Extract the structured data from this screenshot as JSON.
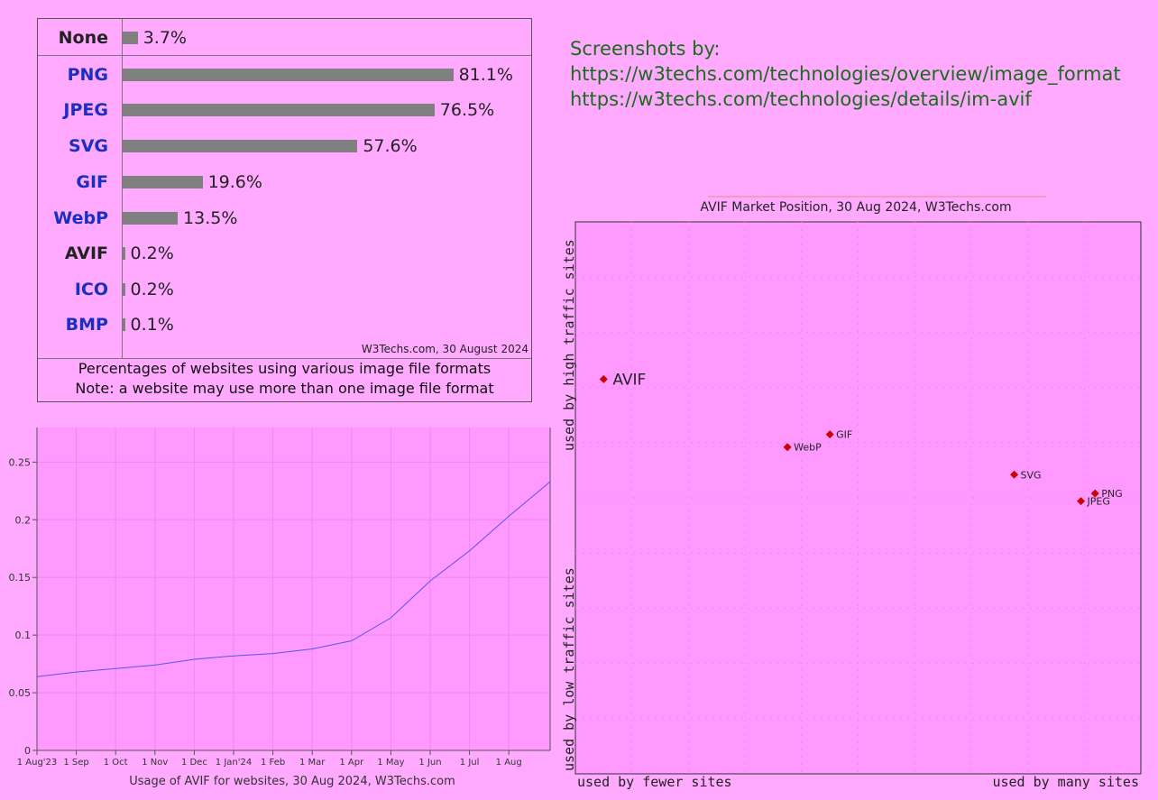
{
  "bar_table": {
    "credit": "W3Techs.com, 30 August 2024",
    "caption_line1": "Percentages of websites using various image file formats",
    "caption_line2": "Note: a website may use more than one image file format"
  },
  "screenshots": {
    "heading": "Screenshots by:",
    "link1": "https://w3techs.com/technologies/overview/image_format",
    "link2": "https://w3techs.com/technologies/details/im-avif"
  },
  "colors": {
    "background": "#ffaaff",
    "bar": "#808080",
    "label_blue": "#1a2fc2",
    "line": "#5555ee",
    "point": "#cc0000",
    "note_green": "#1c6b1c"
  },
  "chart_data": [
    {
      "type": "bar",
      "orientation": "horizontal",
      "categories": [
        "None",
        "PNG",
        "JPEG",
        "SVG",
        "GIF",
        "WebP",
        "AVIF",
        "ICO",
        "BMP"
      ],
      "values": [
        3.7,
        81.1,
        76.5,
        57.6,
        19.6,
        13.5,
        0.2,
        0.2,
        0.1
      ],
      "value_labels": [
        "3.7%",
        "81.1%",
        "76.5%",
        "57.6%",
        "19.6%",
        "13.5%",
        "0.2%",
        "0.2%",
        "0.1%"
      ],
      "xlim": [
        0,
        100
      ]
    },
    {
      "type": "line",
      "title": "Usage of AVIF for websites, 30 Aug 2024, W3Techs.com",
      "x": [
        "1 Aug'23",
        "1 Sep",
        "1 Oct",
        "1 Nov",
        "1 Dec",
        "1 Jan'24",
        "1 Feb",
        "1 Mar",
        "1 Apr",
        "1 May",
        "1 Jun",
        "1 Jul",
        "1 Aug",
        "30 Aug"
      ],
      "x_tick_labels": [
        "1 Aug'23",
        "1 Sep",
        "1 Oct",
        "1 Nov",
        "1 Dec",
        "1 Jan'24",
        "1 Feb",
        "1 Mar",
        "1 Apr",
        "1 May",
        "1 Jun",
        "1 Jul",
        "1 Aug"
      ],
      "y": [
        0.064,
        0.068,
        0.071,
        0.074,
        0.079,
        0.082,
        0.084,
        0.088,
        0.095,
        0.115,
        0.147,
        0.173,
        0.203,
        0.233
      ],
      "y_ticks": [
        0,
        0.05,
        0.1,
        0.15,
        0.2,
        0.25
      ],
      "y_tick_labels": [
        "0",
        "0.05",
        "0.1",
        "0.15",
        "0.2",
        "0.25"
      ],
      "ylim": [
        0,
        0.28
      ],
      "grid": true
    },
    {
      "type": "scatter",
      "title": "AVIF Market Position, 30 Aug 2024, W3Techs.com",
      "xlabel_left": "used by fewer sites",
      "xlabel_right": "used by many sites",
      "ylabel_top": "used by high traffic sites",
      "ylabel_bottom": "used by low traffic sites",
      "xlim": [
        0,
        100
      ],
      "ylim": [
        0,
        100
      ],
      "grid": true,
      "points": [
        {
          "label": "AVIF",
          "x": 5,
          "y": 71.5,
          "highlight": true
        },
        {
          "label": "GIF",
          "x": 45,
          "y": 61.5
        },
        {
          "label": "WebP",
          "x": 37.5,
          "y": 59.2
        },
        {
          "label": "SVG",
          "x": 77.6,
          "y": 54.2
        },
        {
          "label": "PNG",
          "x": 91.9,
          "y": 50.8
        },
        {
          "label": "JPEG",
          "x": 89.4,
          "y": 49.4
        }
      ]
    }
  ]
}
